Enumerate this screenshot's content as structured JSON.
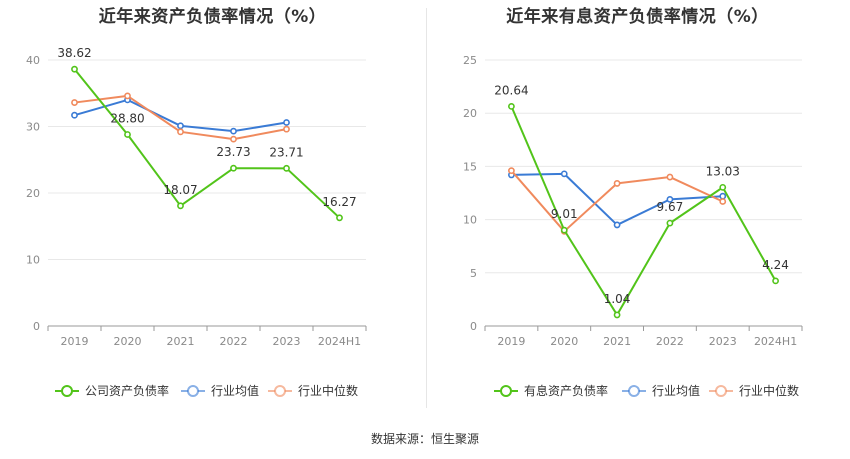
{
  "source_text": "数据来源：恒生聚源",
  "chart_data": [
    {
      "type": "line",
      "title": "近年来资产负债率情况（%）",
      "categories": [
        "2019",
        "2020",
        "2021",
        "2022",
        "2023",
        "2024H1"
      ],
      "ylim": [
        0,
        40
      ],
      "yticks": [
        0,
        10,
        20,
        30,
        40
      ],
      "series": [
        {
          "name": "公司资产负债率",
          "color": "#52c41a",
          "values": [
            38.62,
            28.8,
            18.07,
            23.73,
            23.71,
            16.27
          ],
          "labels": [
            "38.62",
            "28.80",
            "18.07",
            "23.73",
            "23.71",
            "16.27"
          ]
        },
        {
          "name": "行业均值",
          "color": "#3a7bd5",
          "values": [
            31.7,
            34.0,
            30.1,
            29.3,
            30.6,
            null
          ]
        },
        {
          "name": "行业中位数",
          "color": "#f08a5d",
          "values": [
            33.6,
            34.6,
            29.2,
            28.1,
            29.6,
            null
          ]
        }
      ]
    },
    {
      "type": "line",
      "title": "近年来有息资产负债率情况（%）",
      "categories": [
        "2019",
        "2020",
        "2021",
        "2022",
        "2023",
        "2024H1"
      ],
      "ylim": [
        0,
        25
      ],
      "yticks": [
        0,
        5,
        10,
        15,
        20,
        25
      ],
      "series": [
        {
          "name": "有息资产负债率",
          "color": "#52c41a",
          "values": [
            20.64,
            9.01,
            1.04,
            9.67,
            13.03,
            4.24
          ],
          "labels": [
            "20.64",
            "9.01",
            "1.04",
            "9.67",
            "13.03",
            "4.24"
          ]
        },
        {
          "name": "行业均值",
          "color": "#3a7bd5",
          "values": [
            14.2,
            14.3,
            9.5,
            11.9,
            12.2,
            null
          ]
        },
        {
          "name": "行业中位数",
          "color": "#f08a5d",
          "values": [
            14.6,
            8.9,
            13.4,
            14.0,
            11.7,
            null
          ]
        }
      ]
    }
  ]
}
